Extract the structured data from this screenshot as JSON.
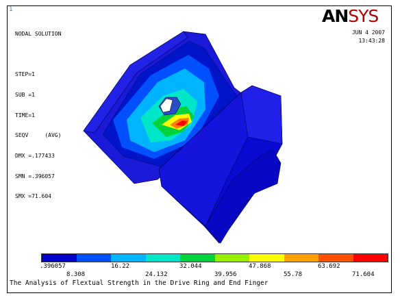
{
  "viewport_number": "1",
  "info_lines": [
    "NODAL SOLUTION",
    "",
    "STEP=1",
    "SUB =1",
    "TIME=1",
    "SEQV     (AVG)",
    "DMX =.177433",
    "SMN =.396057",
    "SMX =71.604"
  ],
  "logo": {
    "part1": "AN",
    "part2": "SYS"
  },
  "date": "JUN  4 2007",
  "time": "13:43:28",
  "legend": {
    "colors": [
      "#0000c8",
      "#0050ff",
      "#00b4ff",
      "#00e6c8",
      "#00d23c",
      "#96f000",
      "#ffff00",
      "#ffa000",
      "#ff5000",
      "#ff0000"
    ],
    "top_labels": [
      ".396057",
      "16.22",
      "32.044",
      "47.868",
      "63.692"
    ],
    "bottom_labels": [
      "8.308",
      "24.132",
      "39.956",
      "55.78",
      "71.604"
    ]
  },
  "caption": "The Analysis of Flextual Strength in the Drive Ring and End Finger"
}
